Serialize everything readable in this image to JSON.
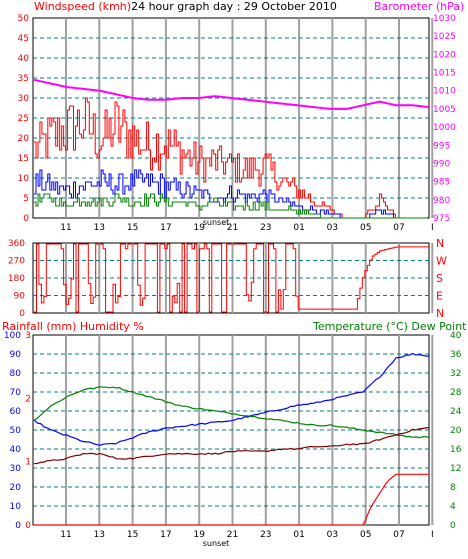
{
  "title": "24 hour graph day : 29 October 2010",
  "sunset_label": "sunset",
  "colors": {
    "grid_dash": "#008080",
    "grid_vertical": "#a0a0a0",
    "windspeed": "#ff0000",
    "gust": "#0000ff",
    "avg": "#008000",
    "barometer": "#ff00ff",
    "direction": "#ff0000",
    "humidity": "#0000ff",
    "temperature": "#008000",
    "dewpoint": "#800000",
    "rainfall": "#ff0000"
  },
  "chart_data": [
    {
      "type": "line",
      "title": "24 hour graph day : 29 October 2010",
      "x_ticks": [
        "11",
        "13",
        "15",
        "17",
        "19",
        "21",
        "23",
        "01",
        "03",
        "05",
        "07",
        "I"
      ],
      "left_axis": {
        "label": "Windspeed (kmh)",
        "range": [
          0,
          50
        ],
        "ticks": [
          "0",
          "5",
          "10",
          "15",
          "20",
          "25",
          "30",
          "35",
          "40",
          "45",
          "50"
        ]
      },
      "right_axis": {
        "label": "Barometer (hPa)",
        "range": [
          975,
          1030
        ],
        "ticks": [
          "975",
          "980",
          "985",
          "990",
          "995",
          "1000",
          "1005",
          "1010",
          "1015",
          "1020",
          "1025",
          "1030"
        ]
      },
      "series": [
        {
          "name": "Barometer (hPa)",
          "axis": "right",
          "x": [
            0,
            1,
            2,
            3,
            4,
            5,
            6,
            7,
            8,
            9,
            10,
            11,
            12,
            13,
            14,
            15,
            16,
            17,
            18,
            19,
            20,
            21,
            22,
            23,
            24
          ],
          "values": [
            1013,
            1012,
            1011,
            1010.5,
            1010,
            1009,
            1008,
            1007.5,
            1007.5,
            1008,
            1008,
            1008.5,
            1008,
            1007.5,
            1007,
            1006.5,
            1006,
            1005.5,
            1005,
            1005,
            1006,
            1007,
            1006,
            1006,
            1005.5
          ]
        },
        {
          "axis": "left",
          "x": [
            0,
            1,
            2,
            3,
            4,
            5,
            6,
            7,
            8,
            9,
            10,
            11,
            12,
            13,
            14,
            15,
            16,
            17,
            18,
            19,
            20,
            21,
            22,
            23,
            24
          ],
          "values": [
            17,
            20,
            22,
            24,
            19,
            23,
            20,
            18,
            19,
            16,
            14,
            14,
            13,
            12,
            13,
            9,
            7,
            4,
            2,
            0,
            0,
            5,
            0,
            0,
            0
          ]
        },
        {
          "axis": "left",
          "x": [
            0,
            1,
            2,
            3,
            4,
            5,
            6,
            7,
            8,
            9,
            10,
            11,
            12,
            13,
            14,
            15,
            16,
            17,
            18,
            19,
            20,
            21,
            22,
            23,
            24
          ],
          "values": [
            9,
            8,
            7,
            8,
            9,
            8,
            9,
            9,
            8,
            7,
            6,
            5,
            6,
            5,
            6,
            4,
            3,
            2,
            1,
            0,
            0,
            2,
            0,
            0,
            0
          ]
        },
        {
          "axis": "left",
          "x": [
            0,
            1,
            2,
            3,
            4,
            5,
            6,
            7,
            8,
            9,
            10,
            11,
            12,
            13,
            14,
            15,
            16,
            17,
            18,
            19,
            20,
            21,
            22,
            23,
            24
          ],
          "values": [
            4,
            5,
            3,
            5,
            4,
            5,
            4,
            5,
            4,
            4,
            3,
            4,
            3,
            3,
            3,
            2,
            2,
            1,
            0,
            0,
            0,
            0,
            0,
            0,
            0
          ]
        }
      ]
    },
    {
      "type": "line",
      "x_ticks": [
        "11",
        "13",
        "15",
        "17",
        "19",
        "21",
        "23",
        "01",
        "03",
        "05",
        "07",
        "I"
      ],
      "left_axis": {
        "range": [
          0,
          360
        ],
        "ticks": [
          "0",
          "90",
          "180",
          "270",
          "360"
        ]
      },
      "right_axis": {
        "ticks": [
          "N",
          "E",
          "S",
          "W",
          "N"
        ]
      },
      "series": [
        {
          "axis": "left",
          "x": [
            0,
            0.5,
            1,
            1.5,
            2,
            2.5,
            3,
            3.5,
            4,
            4.5,
            5,
            5.5,
            6,
            6.5,
            7,
            7.5,
            8,
            8.5,
            9,
            9.5,
            10,
            10.5,
            11,
            11.5,
            12,
            12.5,
            13,
            13.5,
            14,
            14.5,
            15,
            15.5,
            16,
            16.5,
            17,
            17.5,
            18,
            18.5,
            19,
            19.5,
            20,
            20.5,
            21,
            21.5,
            22,
            22.5,
            23,
            23.5,
            24
          ],
          "values": [
            340,
            20,
            345,
            350,
            10,
            340,
            355,
            15,
            350,
            340,
            20,
            345,
            350,
            5,
            355,
            340,
            350,
            20,
            350,
            345,
            350,
            355,
            350,
            345,
            350,
            350,
            30,
            350,
            340,
            350,
            20,
            355,
            20,
            20,
            20,
            20,
            20,
            20,
            20,
            20,
            200,
            290,
            320,
            330,
            340,
            340,
            340,
            340,
            340
          ]
        }
      ]
    },
    {
      "type": "line",
      "x_ticks": [
        "11",
        "13",
        "15",
        "17",
        "19",
        "21",
        "23",
        "01",
        "03",
        "05",
        "07",
        "I"
      ],
      "left_axis": {
        "label": "Rainfall (mm)  Humidity %",
        "range": [
          0,
          100
        ],
        "humidity_ticks": [
          "0",
          "10",
          "20",
          "30",
          "40",
          "50",
          "60",
          "70",
          "80",
          "90",
          "100"
        ],
        "rainfall_ticks": [
          "0",
          "1",
          "2",
          "3"
        ]
      },
      "right_axis": {
        "label": "Temperature (°C) Dew Point",
        "range": [
          0,
          40
        ],
        "ticks": [
          "0",
          "4",
          "8",
          "12",
          "16",
          "20",
          "24",
          "28",
          "32",
          "36",
          "40"
        ]
      },
      "series": [
        {
          "name": "Humidity %",
          "axis": "left",
          "x": [
            0,
            1,
            2,
            3,
            4,
            5,
            6,
            7,
            8,
            9,
            10,
            11,
            12,
            13,
            14,
            15,
            16,
            17,
            18,
            19,
            20,
            21,
            22,
            23,
            24
          ],
          "values": [
            55,
            50,
            47,
            44,
            42,
            43,
            46,
            49,
            51,
            52,
            53,
            54,
            55,
            57,
            59,
            61,
            63,
            64,
            66,
            68,
            70,
            78,
            88,
            90,
            89
          ]
        },
        {
          "name": "Temperature (°C)",
          "axis": "right",
          "x": [
            0,
            1,
            2,
            3,
            4,
            5,
            6,
            7,
            8,
            9,
            10,
            11,
            12,
            13,
            14,
            15,
            16,
            17,
            18,
            19,
            20,
            21,
            22,
            23,
            24
          ],
          "values": [
            22,
            25,
            27,
            28.5,
            29,
            29,
            28,
            27,
            26,
            25,
            24.5,
            24,
            23.5,
            23,
            22.5,
            22,
            21.5,
            21,
            21,
            20.5,
            20,
            19.5,
            19,
            18.5,
            18.5
          ]
        },
        {
          "name": "Dew Point",
          "axis": "right",
          "x": [
            0,
            1,
            2,
            3,
            4,
            5,
            6,
            7,
            8,
            9,
            10,
            11,
            12,
            13,
            14,
            15,
            16,
            17,
            18,
            19,
            20,
            21,
            22,
            23,
            24
          ],
          "values": [
            13,
            13.5,
            14,
            15,
            15,
            14,
            14,
            14.5,
            15,
            15,
            15,
            15,
            15.5,
            15.5,
            15.5,
            16,
            16,
            16.5,
            16.5,
            17,
            17,
            18,
            19,
            20,
            20.5
          ]
        },
        {
          "name": "Rainfall (mm)",
          "axis": "left",
          "x": [
            0,
            19.5,
            20,
            20.5,
            21,
            21.5,
            22,
            22.5,
            23,
            24
          ],
          "values": [
            0,
            0,
            0,
            0.3,
            0.5,
            0.7,
            0.8,
            0.8,
            0.8,
            0.8
          ]
        }
      ]
    }
  ]
}
